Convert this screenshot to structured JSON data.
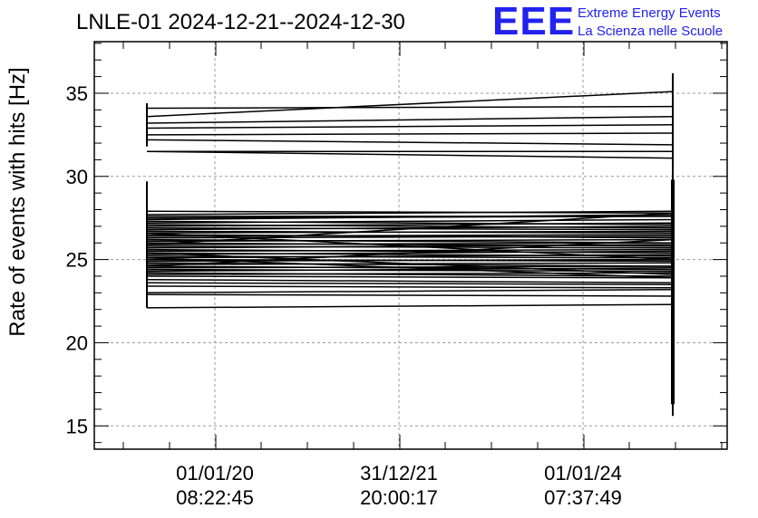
{
  "logo": {
    "mark": "EEE",
    "line1": "Extreme Energy Events",
    "line2": "La Scienza nelle Scuole",
    "color": "#2222ee"
  },
  "chart_data": {
    "type": "line",
    "title": "LNLE-01 2024-12-21--2024-12-30",
    "xlabel": "",
    "ylabel": "Rate of events with hits [Hz]",
    "ylim": [
      13.6,
      38.1
    ],
    "y_ticks": [
      15,
      20,
      25,
      30,
      35
    ],
    "x_ticks": [
      {
        "date": "01/01/20",
        "time": "08:22:45"
      },
      {
        "date": "31/12/21",
        "time": "20:00:17"
      },
      {
        "date": "01/01/24",
        "time": "07:37:49"
      }
    ],
    "grid": true,
    "line_color": "#000000",
    "start_spike": {
      "min": 22.1,
      "max": 29.7
    },
    "upper_spike": {
      "min": 31.8,
      "max": 34.4
    },
    "end_spike": {
      "min": 15.6,
      "max": 36.2
    },
    "end_spike_dense": {
      "min": 16.3,
      "max": 29.8
    },
    "series_start_end": [
      [
        34.1,
        34.2
      ],
      [
        33.6,
        35.1
      ],
      [
        33.2,
        33.6
      ],
      [
        32.9,
        33.1
      ],
      [
        32.5,
        32.6
      ],
      [
        32.2,
        31.9
      ],
      [
        31.5,
        31.5
      ],
      [
        31.5,
        31.1
      ],
      [
        27.9,
        27.8
      ],
      [
        27.7,
        27.9
      ],
      [
        27.6,
        27.6
      ],
      [
        27.5,
        27.6
      ],
      [
        27.4,
        27.7
      ],
      [
        27.3,
        27.1
      ],
      [
        27.2,
        27.4
      ],
      [
        27.1,
        26.9
      ],
      [
        27.0,
        27.2
      ],
      [
        26.9,
        26.8
      ],
      [
        26.8,
        27.0
      ],
      [
        26.7,
        26.6
      ],
      [
        26.6,
        26.7
      ],
      [
        26.5,
        26.3
      ],
      [
        26.4,
        26.5
      ],
      [
        26.3,
        26.4
      ],
      [
        26.2,
        26.0
      ],
      [
        26.1,
        26.2
      ],
      [
        26.0,
        25.8
      ],
      [
        25.9,
        26.0
      ],
      [
        25.8,
        25.7
      ],
      [
        25.7,
        25.9
      ],
      [
        25.6,
        25.4
      ],
      [
        25.5,
        25.6
      ],
      [
        25.4,
        25.2
      ],
      [
        25.3,
        25.5
      ],
      [
        25.2,
        25.1
      ],
      [
        25.1,
        25.3
      ],
      [
        25.0,
        24.9
      ],
      [
        24.9,
        25.0
      ],
      [
        24.8,
        24.6
      ],
      [
        24.7,
        24.8
      ],
      [
        24.6,
        24.4
      ],
      [
        24.5,
        24.6
      ],
      [
        24.4,
        24.3
      ],
      [
        24.3,
        24.5
      ],
      [
        24.2,
        24.0
      ],
      [
        24.1,
        24.2
      ],
      [
        24.0,
        23.9
      ],
      [
        23.8,
        23.6
      ],
      [
        23.6,
        23.5
      ],
      [
        23.4,
        23.3
      ],
      [
        23.0,
        23.2
      ],
      [
        22.9,
        22.8
      ],
      [
        22.1,
        22.3
      ],
      [
        25.9,
        27.8
      ],
      [
        25.4,
        24.1
      ],
      [
        26.6,
        25.0
      ],
      [
        24.6,
        26.2
      ],
      [
        25.1,
        23.9
      ]
    ]
  }
}
